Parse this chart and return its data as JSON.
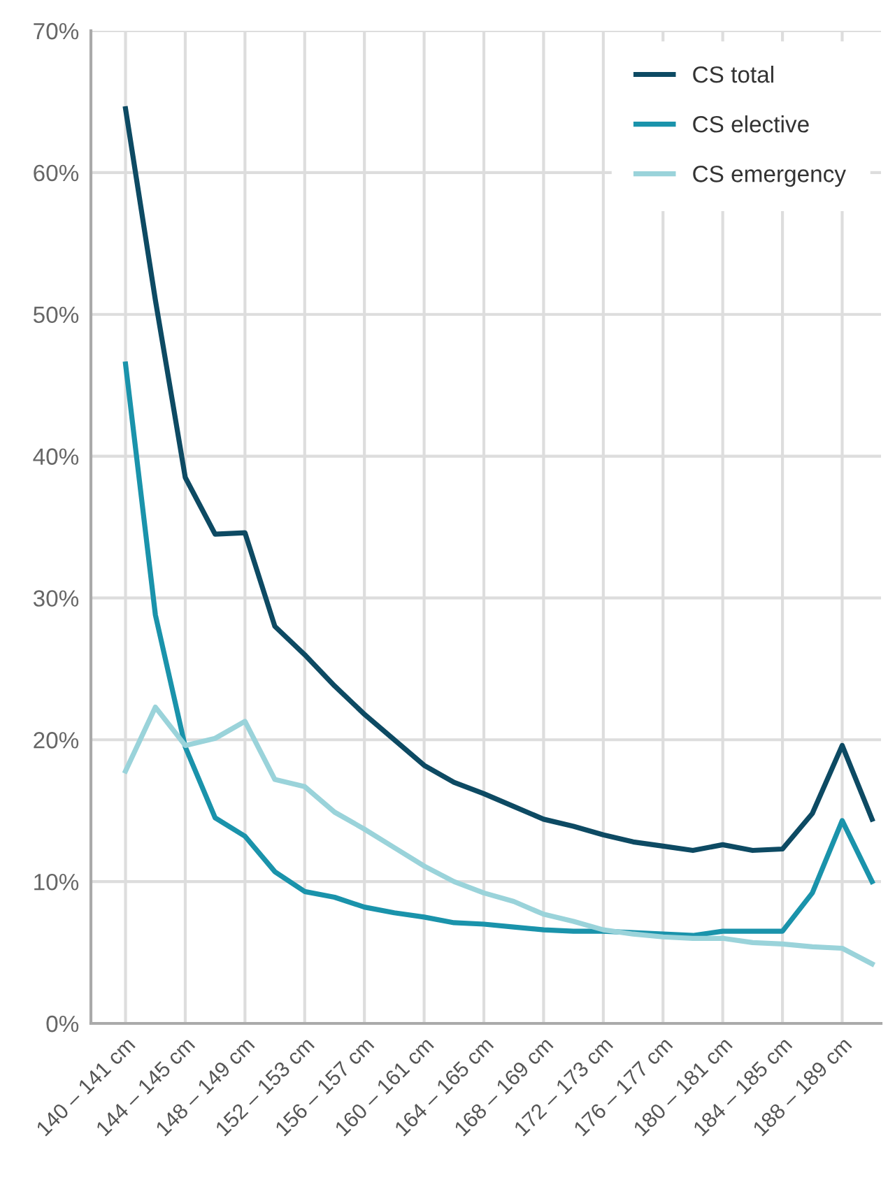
{
  "chart_data": {
    "type": "line",
    "categories": [
      "140 – 141 cm",
      null,
      "144 – 145 cm",
      null,
      "148 – 149 cm",
      null,
      "152 – 153 cm",
      null,
      "156 – 157 cm",
      null,
      "160 – 161 cm",
      null,
      "164 – 165 cm",
      null,
      "168 – 169 cm",
      null,
      "172 – 173 cm",
      null,
      "176 – 177 cm",
      null,
      "180 – 181 cm",
      null,
      "184 – 185 cm",
      null,
      "188 – 189 cm",
      null
    ],
    "series": [
      {
        "name": "CS total",
        "color": "#0d4a63",
        "values": [
          64.5,
          51,
          38.5,
          34.5,
          34.6,
          28,
          26,
          23.8,
          21.8,
          20,
          18.2,
          17,
          16.2,
          15.3,
          14.4,
          13.9,
          13.3,
          12.8,
          12.5,
          12.2,
          12.6,
          12.2,
          12.3,
          14.8,
          19.6,
          14.4
        ]
      },
      {
        "name": "CS elective",
        "color": "#1a93ab",
        "values": [
          46.5,
          28.8,
          19.5,
          14.5,
          13.2,
          10.7,
          9.3,
          8.9,
          8.2,
          7.8,
          7.5,
          7.1,
          7.0,
          6.8,
          6.6,
          6.5,
          6.5,
          6.4,
          6.3,
          6.2,
          6.5,
          6.5,
          6.5,
          9.2,
          14.3,
          10.0
        ]
      },
      {
        "name": "CS emergency",
        "color": "#9ad3da",
        "values": [
          17.8,
          22.3,
          19.6,
          20.1,
          21.3,
          17.2,
          16.7,
          14.9,
          13.7,
          12.4,
          11.1,
          10.0,
          9.2,
          8.6,
          7.7,
          7.2,
          6.6,
          6.3,
          6.1,
          6.0,
          6.0,
          5.7,
          5.6,
          5.4,
          5.3,
          4.2
        ]
      }
    ],
    "ylim": [
      0,
      70
    ],
    "yticks": [
      {
        "value": 0,
        "label": "0%"
      },
      {
        "value": 10,
        "label": "10%"
      },
      {
        "value": 20,
        "label": "20%"
      },
      {
        "value": 30,
        "label": "30%"
      },
      {
        "value": 40,
        "label": "40%"
      },
      {
        "value": 50,
        "label": "50%"
      },
      {
        "value": 60,
        "label": "60%"
      },
      {
        "value": 70,
        "label": "70%"
      }
    ],
    "grid": true,
    "legend": "top right",
    "marker": "none",
    "line_style": "solid"
  }
}
